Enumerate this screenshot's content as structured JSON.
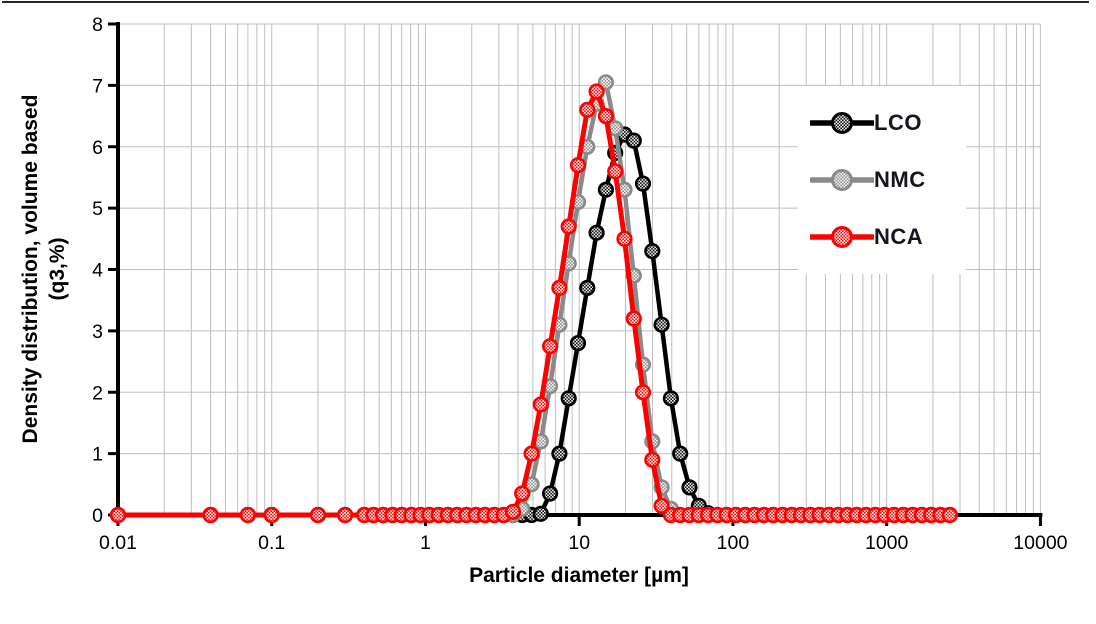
{
  "page": {
    "background": "#ffffff",
    "top_border_color": "#262626"
  },
  "chart_data": {
    "type": "line",
    "title": "",
    "xlabel": "Particle diameter [µm]",
    "ylabel_line1": "Density distribution, volume based",
    "ylabel_line2": "(q3,%)",
    "x_scale": "log",
    "xlim": [
      0.01,
      10000
    ],
    "ylim": [
      0,
      8
    ],
    "x_ticks": [
      "0.01",
      "0.1",
      "1",
      "10",
      "100",
      "1000",
      "10000"
    ],
    "y_ticks": [
      "0",
      "1",
      "2",
      "3",
      "4",
      "5",
      "6",
      "7",
      "8"
    ],
    "grid": {
      "color": "#bfbfbf",
      "minor_log_x": true,
      "horizontal_step": 1
    },
    "legend": {
      "position": "upper-right-inside",
      "background": "#ffffff"
    },
    "axis_color": "#000000",
    "tick_label_color": "#000000",
    "x": [
      0.01,
      0.04,
      0.07,
      0.1,
      0.2,
      0.3,
      0.4,
      0.46,
      0.53,
      0.61,
      0.7,
      0.81,
      0.93,
      1.06,
      1.22,
      1.4,
      1.61,
      1.85,
      2.13,
      2.44,
      2.81,
      3.23,
      3.71,
      4.26,
      4.9,
      5.63,
      6.47,
      7.43,
      8.54,
      9.82,
      11.29,
      12.97,
      14.91,
      17.14,
      19.7,
      22.64,
      26.02,
      29.91,
      34.37,
      39.51,
      45.41,
      52.19,
      59.99,
      68.95,
      79.25,
      91.09,
      104.7,
      120.34,
      138.32,
      158.98,
      182.73,
      210.03,
      241.4,
      277.46,
      318.91,
      366.55,
      421.31,
      484.25,
      556.59,
      639.74,
      735.3,
      845.14,
      971.39,
      1116.5,
      1283.29,
      1474.98,
      1695.31,
      1948.55,
      2239.62,
      2574.18
    ],
    "series": [
      {
        "name": "LCO",
        "color": "#000000",
        "line_width": 4.5,
        "values": [
          0,
          0,
          0,
          0,
          0,
          0,
          0,
          0,
          0,
          0,
          0,
          0,
          0,
          0,
          0,
          0,
          0,
          0,
          0,
          0,
          0,
          0,
          0,
          0,
          0,
          0.02,
          0.35,
          1.0,
          1.9,
          2.8,
          3.7,
          4.6,
          5.3,
          5.9,
          6.2,
          6.1,
          5.4,
          4.3,
          3.1,
          1.9,
          1.0,
          0.45,
          0.15,
          0.03,
          0,
          0,
          0,
          0,
          0,
          0,
          0,
          0,
          0,
          0,
          0,
          0,
          0,
          0,
          0,
          0,
          0,
          0,
          0,
          0,
          0,
          0,
          0,
          0,
          0,
          0
        ]
      },
      {
        "name": "NMC",
        "color": "#8a8a8a",
        "line_width": 4.5,
        "values": [
          0,
          0,
          0,
          0,
          0,
          0,
          0,
          0,
          0,
          0,
          0,
          0,
          0,
          0,
          0,
          0,
          0,
          0,
          0,
          0,
          0,
          0,
          0,
          0.1,
          0.5,
          1.2,
          2.1,
          3.1,
          4.1,
          5.1,
          6.0,
          6.7,
          7.05,
          6.3,
          5.3,
          3.9,
          2.45,
          1.2,
          0.45,
          0.1,
          0,
          0,
          0,
          0,
          0,
          0,
          0,
          0,
          0,
          0,
          0,
          0,
          0,
          0,
          0,
          0,
          0,
          0,
          0,
          0,
          0,
          0,
          0,
          0,
          0,
          0,
          0,
          0,
          0,
          0
        ]
      },
      {
        "name": "NCA",
        "color": "#ff0000",
        "line_width": 5,
        "values": [
          0,
          0,
          0,
          0,
          0,
          0,
          0,
          0,
          0,
          0,
          0,
          0,
          0,
          0,
          0,
          0,
          0,
          0,
          0,
          0,
          0,
          0,
          0.05,
          0.35,
          1.0,
          1.8,
          2.75,
          3.7,
          4.7,
          5.7,
          6.6,
          6.9,
          6.5,
          5.6,
          4.5,
          3.2,
          2.0,
          0.9,
          0.15,
          0,
          0,
          0,
          0,
          0,
          0,
          0,
          0,
          0,
          0,
          0,
          0,
          0,
          0,
          0,
          0,
          0,
          0,
          0,
          0,
          0,
          0,
          0,
          0,
          0,
          0,
          0,
          0,
          0,
          0,
          0
        ]
      }
    ]
  }
}
